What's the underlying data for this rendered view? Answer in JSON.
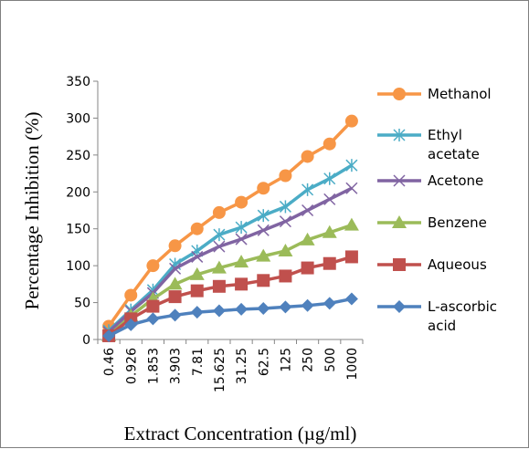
{
  "chart_data": {
    "type": "line",
    "title": "",
    "xlabel": "Extract Concentration (µg/ml)",
    "ylabel": "Percentage Inhibition (%)",
    "ylim": [
      0,
      350
    ],
    "yticks": [
      "0",
      "50",
      "100",
      "150",
      "200",
      "250",
      "300",
      "350"
    ],
    "categories": [
      "0.46",
      "0.926",
      "1.853",
      "3.903",
      "7.81",
      "15.625",
      "31.25",
      "62.5",
      "125",
      "250",
      "500",
      "1000"
    ],
    "grid": false,
    "legend_position": "right",
    "series": [
      {
        "name": "Methanol",
        "color": "#f79646",
        "marker": "circle",
        "values": [
          18,
          60,
          100,
          127,
          150,
          172,
          186,
          205,
          222,
          248,
          265,
          296
        ]
      },
      {
        "name": "Ethyl acetate",
        "legend_lines": [
          "Ethyl",
          "acetate"
        ],
        "color": "#4bacc6",
        "marker": "asterisk",
        "values": [
          12,
          40,
          67,
          102,
          120,
          142,
          152,
          168,
          180,
          203,
          218,
          236
        ]
      },
      {
        "name": "Acetone",
        "color": "#8064a2",
        "marker": "x",
        "values": [
          10,
          38,
          63,
          96,
          112,
          126,
          136,
          148,
          160,
          175,
          190,
          205
        ]
      },
      {
        "name": "Benzene",
        "color": "#9bbb59",
        "marker": "triangle",
        "values": [
          5,
          32,
          55,
          75,
          88,
          97,
          105,
          113,
          120,
          135,
          145,
          155
        ]
      },
      {
        "name": "Aqueous",
        "color": "#c0504d",
        "marker": "square",
        "values": [
          5,
          28,
          45,
          58,
          66,
          72,
          75,
          80,
          86,
          97,
          103,
          112
        ]
      },
      {
        "name": "L-ascorbic acid",
        "legend_lines": [
          "L-ascorbic",
          "acid"
        ],
        "color": "#4f81bd",
        "marker": "diamond",
        "values": [
          5,
          20,
          28,
          33,
          37,
          39,
          41,
          42,
          44,
          46,
          49,
          55
        ]
      }
    ]
  }
}
